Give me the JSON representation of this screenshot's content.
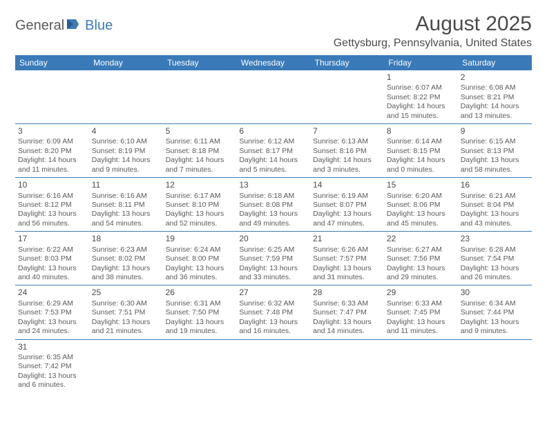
{
  "logo": {
    "text1": "General",
    "text2": "Blue"
  },
  "title": "August 2025",
  "location": "Gettysburg, Pennsylvania, United States",
  "colors": {
    "header_bg": "#3a7ab8",
    "header_text": "#ffffff",
    "border": "#3a7ab8",
    "body_text": "#5a5a5a",
    "title_text": "#4a4a4a",
    "logo_blue": "#3a7ab8"
  },
  "week_headers": [
    "Sunday",
    "Monday",
    "Tuesday",
    "Wednesday",
    "Thursday",
    "Friday",
    "Saturday"
  ],
  "weeks": [
    [
      null,
      null,
      null,
      null,
      null,
      {
        "n": "1",
        "sr": "Sunrise: 6:07 AM",
        "ss": "Sunset: 8:22 PM",
        "d1": "Daylight: 14 hours",
        "d2": "and 15 minutes."
      },
      {
        "n": "2",
        "sr": "Sunrise: 6:08 AM",
        "ss": "Sunset: 8:21 PM",
        "d1": "Daylight: 14 hours",
        "d2": "and 13 minutes."
      }
    ],
    [
      {
        "n": "3",
        "sr": "Sunrise: 6:09 AM",
        "ss": "Sunset: 8:20 PM",
        "d1": "Daylight: 14 hours",
        "d2": "and 11 minutes."
      },
      {
        "n": "4",
        "sr": "Sunrise: 6:10 AM",
        "ss": "Sunset: 8:19 PM",
        "d1": "Daylight: 14 hours",
        "d2": "and 9 minutes."
      },
      {
        "n": "5",
        "sr": "Sunrise: 6:11 AM",
        "ss": "Sunset: 8:18 PM",
        "d1": "Daylight: 14 hours",
        "d2": "and 7 minutes."
      },
      {
        "n": "6",
        "sr": "Sunrise: 6:12 AM",
        "ss": "Sunset: 8:17 PM",
        "d1": "Daylight: 14 hours",
        "d2": "and 5 minutes."
      },
      {
        "n": "7",
        "sr": "Sunrise: 6:13 AM",
        "ss": "Sunset: 8:16 PM",
        "d1": "Daylight: 14 hours",
        "d2": "and 3 minutes."
      },
      {
        "n": "8",
        "sr": "Sunrise: 6:14 AM",
        "ss": "Sunset: 8:15 PM",
        "d1": "Daylight: 14 hours",
        "d2": "and 0 minutes."
      },
      {
        "n": "9",
        "sr": "Sunrise: 6:15 AM",
        "ss": "Sunset: 8:13 PM",
        "d1": "Daylight: 13 hours",
        "d2": "and 58 minutes."
      }
    ],
    [
      {
        "n": "10",
        "sr": "Sunrise: 6:16 AM",
        "ss": "Sunset: 8:12 PM",
        "d1": "Daylight: 13 hours",
        "d2": "and 56 minutes."
      },
      {
        "n": "11",
        "sr": "Sunrise: 6:16 AM",
        "ss": "Sunset: 8:11 PM",
        "d1": "Daylight: 13 hours",
        "d2": "and 54 minutes."
      },
      {
        "n": "12",
        "sr": "Sunrise: 6:17 AM",
        "ss": "Sunset: 8:10 PM",
        "d1": "Daylight: 13 hours",
        "d2": "and 52 minutes."
      },
      {
        "n": "13",
        "sr": "Sunrise: 6:18 AM",
        "ss": "Sunset: 8:08 PM",
        "d1": "Daylight: 13 hours",
        "d2": "and 49 minutes."
      },
      {
        "n": "14",
        "sr": "Sunrise: 6:19 AM",
        "ss": "Sunset: 8:07 PM",
        "d1": "Daylight: 13 hours",
        "d2": "and 47 minutes."
      },
      {
        "n": "15",
        "sr": "Sunrise: 6:20 AM",
        "ss": "Sunset: 8:06 PM",
        "d1": "Daylight: 13 hours",
        "d2": "and 45 minutes."
      },
      {
        "n": "16",
        "sr": "Sunrise: 6:21 AM",
        "ss": "Sunset: 8:04 PM",
        "d1": "Daylight: 13 hours",
        "d2": "and 43 minutes."
      }
    ],
    [
      {
        "n": "17",
        "sr": "Sunrise: 6:22 AM",
        "ss": "Sunset: 8:03 PM",
        "d1": "Daylight: 13 hours",
        "d2": "and 40 minutes."
      },
      {
        "n": "18",
        "sr": "Sunrise: 6:23 AM",
        "ss": "Sunset: 8:02 PM",
        "d1": "Daylight: 13 hours",
        "d2": "and 38 minutes."
      },
      {
        "n": "19",
        "sr": "Sunrise: 6:24 AM",
        "ss": "Sunset: 8:00 PM",
        "d1": "Daylight: 13 hours",
        "d2": "and 36 minutes."
      },
      {
        "n": "20",
        "sr": "Sunrise: 6:25 AM",
        "ss": "Sunset: 7:59 PM",
        "d1": "Daylight: 13 hours",
        "d2": "and 33 minutes."
      },
      {
        "n": "21",
        "sr": "Sunrise: 6:26 AM",
        "ss": "Sunset: 7:57 PM",
        "d1": "Daylight: 13 hours",
        "d2": "and 31 minutes."
      },
      {
        "n": "22",
        "sr": "Sunrise: 6:27 AM",
        "ss": "Sunset: 7:56 PM",
        "d1": "Daylight: 13 hours",
        "d2": "and 29 minutes."
      },
      {
        "n": "23",
        "sr": "Sunrise: 6:28 AM",
        "ss": "Sunset: 7:54 PM",
        "d1": "Daylight: 13 hours",
        "d2": "and 26 minutes."
      }
    ],
    [
      {
        "n": "24",
        "sr": "Sunrise: 6:29 AM",
        "ss": "Sunset: 7:53 PM",
        "d1": "Daylight: 13 hours",
        "d2": "and 24 minutes."
      },
      {
        "n": "25",
        "sr": "Sunrise: 6:30 AM",
        "ss": "Sunset: 7:51 PM",
        "d1": "Daylight: 13 hours",
        "d2": "and 21 minutes."
      },
      {
        "n": "26",
        "sr": "Sunrise: 6:31 AM",
        "ss": "Sunset: 7:50 PM",
        "d1": "Daylight: 13 hours",
        "d2": "and 19 minutes."
      },
      {
        "n": "27",
        "sr": "Sunrise: 6:32 AM",
        "ss": "Sunset: 7:48 PM",
        "d1": "Daylight: 13 hours",
        "d2": "and 16 minutes."
      },
      {
        "n": "28",
        "sr": "Sunrise: 6:33 AM",
        "ss": "Sunset: 7:47 PM",
        "d1": "Daylight: 13 hours",
        "d2": "and 14 minutes."
      },
      {
        "n": "29",
        "sr": "Sunrise: 6:33 AM",
        "ss": "Sunset: 7:45 PM",
        "d1": "Daylight: 13 hours",
        "d2": "and 11 minutes."
      },
      {
        "n": "30",
        "sr": "Sunrise: 6:34 AM",
        "ss": "Sunset: 7:44 PM",
        "d1": "Daylight: 13 hours",
        "d2": "and 9 minutes."
      }
    ],
    [
      {
        "n": "31",
        "sr": "Sunrise: 6:35 AM",
        "ss": "Sunset: 7:42 PM",
        "d1": "Daylight: 13 hours",
        "d2": "and 6 minutes."
      },
      null,
      null,
      null,
      null,
      null,
      null
    ]
  ]
}
